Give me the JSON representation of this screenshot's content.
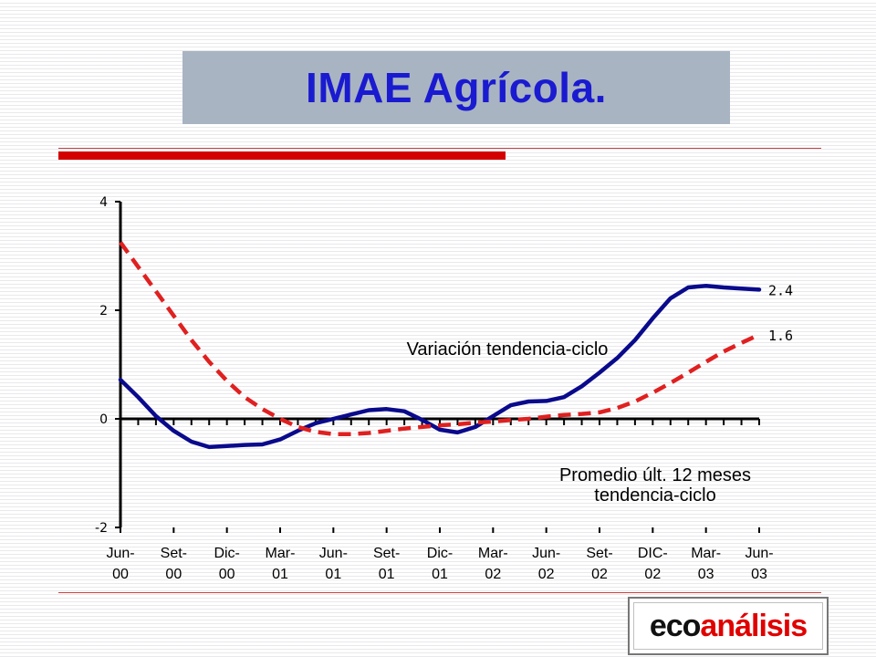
{
  "title": "IMAE Agrícola.",
  "logo": {
    "part1": "eco",
    "part2": "análisis"
  },
  "colors": {
    "title": "#1a1ad0",
    "series_solid": "#0a0a8c",
    "series_dashed": "#e02020",
    "accent_bar": "#d40000"
  },
  "chart_data": {
    "type": "line",
    "ylim": [
      -2,
      4
    ],
    "yticks": [
      -2,
      0,
      2,
      4
    ],
    "xlim": [
      0,
      36
    ],
    "grid": false,
    "x_ticks": [
      {
        "x": 0,
        "l1": "Jun-",
        "l2": "00"
      },
      {
        "x": 3,
        "l1": "Set-",
        "l2": "00"
      },
      {
        "x": 6,
        "l1": "Dic-",
        "l2": "00"
      },
      {
        "x": 9,
        "l1": "Mar-",
        "l2": "01"
      },
      {
        "x": 12,
        "l1": "Jun-",
        "l2": "01"
      },
      {
        "x": 15,
        "l1": "Set-",
        "l2": "01"
      },
      {
        "x": 18,
        "l1": "Dic-",
        "l2": "01"
      },
      {
        "x": 21,
        "l1": "Mar-",
        "l2": "02"
      },
      {
        "x": 24,
        "l1": "Jun-",
        "l2": "02"
      },
      {
        "x": 27,
        "l1": "Set-",
        "l2": "02"
      },
      {
        "x": 30,
        "l1": "DIC-",
        "l2": "02"
      },
      {
        "x": 33,
        "l1": "Mar-",
        "l2": "03"
      },
      {
        "x": 36,
        "l1": "Jun-",
        "l2": "03"
      }
    ],
    "series": [
      {
        "name": "Variación tendencia-ciclo",
        "style": "solid",
        "end_label": "2.4",
        "values": [
          0.72,
          0.4,
          0.05,
          -0.22,
          -0.42,
          -0.52,
          -0.5,
          -0.48,
          -0.47,
          -0.38,
          -0.22,
          -0.08,
          0.0,
          0.08,
          0.16,
          0.18,
          0.14,
          -0.02,
          -0.2,
          -0.25,
          -0.15,
          0.05,
          0.25,
          0.32,
          0.33,
          0.4,
          0.6,
          0.85,
          1.12,
          1.45,
          1.85,
          2.22,
          2.42,
          2.45,
          2.42,
          2.4,
          2.38
        ]
      },
      {
        "name": "Promedio últ. 12 meses tendencia-ciclo",
        "style": "dashed",
        "end_label": "1.6",
        "values": [
          3.25,
          2.8,
          2.35,
          1.9,
          1.45,
          1.05,
          0.7,
          0.4,
          0.18,
          0.0,
          -0.15,
          -0.24,
          -0.28,
          -0.28,
          -0.26,
          -0.22,
          -0.18,
          -0.15,
          -0.12,
          -0.1,
          -0.07,
          -0.05,
          -0.02,
          0.0,
          0.04,
          0.07,
          0.09,
          0.12,
          0.2,
          0.32,
          0.48,
          0.66,
          0.85,
          1.05,
          1.24,
          1.4,
          1.55
        ]
      }
    ],
    "annotations": [
      {
        "lines": [
          "Variación tendencia-ciclo"
        ]
      },
      {
        "lines": [
          "Promedio últ. 12 meses",
          "tendencia-ciclo"
        ]
      }
    ]
  }
}
